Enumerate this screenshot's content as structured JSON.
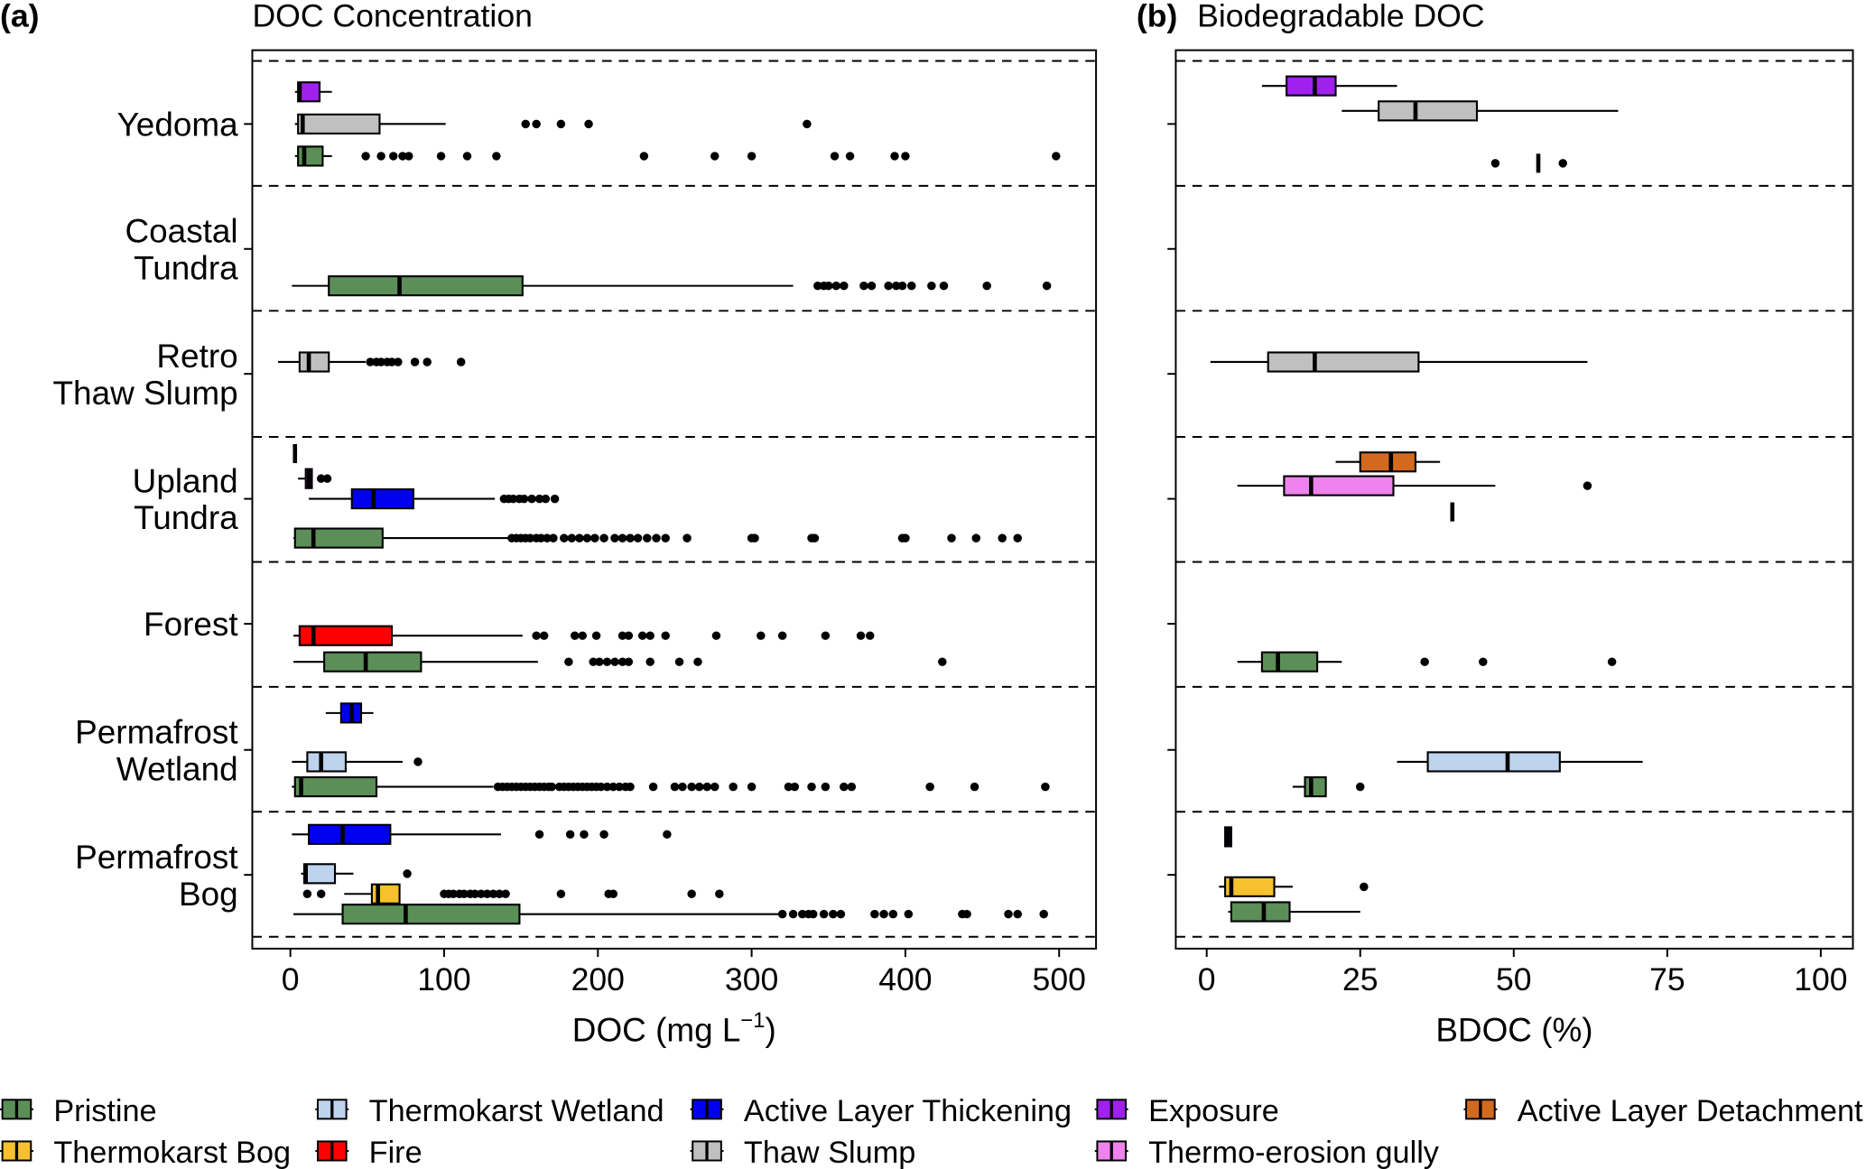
{
  "colors": {
    "Pristine": "#5b8f57",
    "Thermokarst Bog": "#f7c12e",
    "Thermokarst Wetland": "#bdd3ee",
    "Fire": "#ff0000",
    "Active Layer Thickening": "#0000ee",
    "Thaw Slump": "#c0c0c0",
    "Exposure": "#a020f0",
    "Thermo-erosion gully": "#ee82ee",
    "Active Layer Detachment": "#d2691e"
  },
  "legend": {
    "items": [
      "Pristine",
      "Thermokarst Bog",
      "Thermokarst Wetland",
      "Fire",
      "Active Layer Thickening",
      "Thaw Slump",
      "Exposure",
      "Thermo-erosion gully",
      "Active Layer Detachment"
    ]
  },
  "chart_data": [
    {
      "type": "boxplot",
      "panel_label": "(a)",
      "title": "DOC Concentration",
      "xlabel": {
        "main": "DOC (mg L",
        "sup": "−1",
        "end": ")"
      },
      "xlim": [
        -25,
        525
      ],
      "xticks": [
        0,
        100,
        200,
        300,
        400,
        500
      ],
      "groups": [
        {
          "label": [
            "Yedoma"
          ],
          "boxes": [
            {
              "category": "Exposure",
              "min": 3,
              "q1": 5,
              "median": 6,
              "q3": 19,
              "max": 27,
              "outliers": []
            },
            {
              "category": "Thaw Slump",
              "min": 3,
              "q1": 5,
              "median": 8,
              "q3": 58,
              "max": 101,
              "outliers": [
                153,
                160,
                176,
                194,
                336
              ]
            },
            {
              "category": "Pristine",
              "min": 3,
              "q1": 5,
              "median": 9,
              "q3": 21,
              "max": 27,
              "outliers": [
                49,
                59,
                67,
                73,
                77,
                98,
                115,
                134,
                230,
                276,
                300,
                354,
                364,
                393,
                400,
                498
              ]
            }
          ]
        },
        {
          "label": [
            "Coastal",
            "Tundra"
          ],
          "boxes": [
            {
              "category": "Pristine",
              "min": 1,
              "q1": 25,
              "median": 71,
              "q3": 151,
              "max": 327,
              "outliers": [
                343,
                347,
                350,
                355,
                360,
                373,
                378,
                389,
                394,
                398,
                404,
                417,
                425,
                453,
                492
              ]
            }
          ]
        },
        {
          "label": [
            "Retro",
            "Thaw Slump"
          ],
          "boxes": [
            {
              "category": "Thaw Slump",
              "min": -8,
              "q1": 6,
              "median": 12,
              "q3": 25,
              "max": 49,
              "outliers": [
                52,
                56,
                59,
                63,
                66,
                70,
                81,
                89,
                111
              ]
            }
          ]
        },
        {
          "label": [
            "Upland",
            "Tundra"
          ],
          "boxes": [
            {
              "category": "Active Layer Detachment",
              "min": 3,
              "q1": 3,
              "median": 3,
              "q3": 3,
              "max": 3,
              "outliers": []
            },
            {
              "category": "Thermo-erosion gully",
              "min": 5,
              "q1": 10,
              "median": 12,
              "q3": 14,
              "max": 14,
              "outliers": [
                20,
                24
              ]
            },
            {
              "category": "Active Layer Thickening",
              "min": 12,
              "q1": 40,
              "median": 54,
              "q3": 80,
              "max": 133,
              "outliers": [
                139,
                142,
                145,
                149,
                152,
                157,
                162,
                166,
                172
              ]
            },
            {
              "category": "Pristine",
              "min": 2,
              "q1": 3,
              "median": 15,
              "q3": 60,
              "max": 142,
              "outliers": [
                144,
                147,
                150,
                153,
                156,
                160,
                163,
                167,
                171,
                178,
                183,
                188,
                193,
                198,
                204,
                211,
                216,
                221,
                226,
                232,
                238,
                244,
                258,
                300,
                302,
                339,
                341,
                398,
                400,
                430,
                446,
                463,
                473
              ]
            }
          ]
        },
        {
          "label": [
            "Forest"
          ],
          "boxes": [
            {
              "category": "Fire",
              "min": 2,
              "q1": 6,
              "median": 15,
              "q3": 66,
              "max": 151,
              "outliers": [
                160,
                165,
                185,
                190,
                199,
                216,
                220,
                229,
                234,
                244,
                277,
                306,
                320,
                348,
                371,
                377
              ]
            },
            {
              "category": "Pristine",
              "min": 2,
              "q1": 22,
              "median": 49,
              "q3": 85,
              "max": 161,
              "outliers": [
                181,
                197,
                201,
                206,
                211,
                216,
                220,
                234,
                253,
                265,
                424
              ]
            }
          ]
        },
        {
          "label": [
            "Permafrost",
            "Wetland"
          ],
          "boxes": [
            {
              "category": "Active Layer Thickening",
              "min": 23,
              "q1": 33,
              "median": 40,
              "q3": 46,
              "max": 54,
              "outliers": []
            },
            {
              "category": "Thermokarst Wetland",
              "min": 1,
              "q1": 11,
              "median": 20,
              "q3": 36,
              "max": 73,
              "outliers": [
                83
              ]
            },
            {
              "category": "Pristine",
              "min": 1,
              "q1": 3,
              "median": 7,
              "q3": 56,
              "max": 132,
              "outliers": [
                135,
                138,
                141,
                144,
                147,
                150,
                153,
                156,
                159,
                162,
                165,
                168,
                170,
                175,
                178,
                181,
                184,
                187,
                190,
                193,
                196,
                199,
                202,
                206,
                210,
                214,
                218,
                221,
                236,
                250,
                255,
                261,
                266,
                271,
                276,
                288,
                300,
                324,
                328,
                339,
                348,
                360,
                365,
                416,
                445,
                491
              ]
            }
          ]
        },
        {
          "label": [
            "Permafrost",
            "Bog"
          ],
          "boxes": [
            {
              "category": "Active Layer Thickening",
              "min": 1,
              "q1": 12,
              "median": 34,
              "q3": 65,
              "max": 137,
              "outliers": [
                162,
                182,
                191,
                204,
                245
              ]
            },
            {
              "category": "Thermokarst Wetland",
              "min": 7,
              "q1": 9,
              "median": 10,
              "q3": 29,
              "max": 41,
              "outliers": [
                76
              ]
            },
            {
              "category": "Thermokarst Bog",
              "min": 35,
              "q1": 53,
              "median": 57,
              "q3": 71,
              "max": 71,
              "outliers": [
                11,
                20,
                100,
                103,
                106,
                110,
                113,
                117,
                120,
                124,
                128,
                132,
                136,
                140,
                176,
                207,
                210,
                261,
                279
              ]
            },
            {
              "category": "Pristine",
              "min": 2,
              "q1": 34,
              "median": 75,
              "q3": 149,
              "max": 318,
              "outliers": [
                320,
                327,
                333,
                337,
                340,
                347,
                353,
                358,
                380,
                386,
                392,
                402,
                437,
                440,
                467,
                473,
                490
              ]
            }
          ]
        }
      ]
    },
    {
      "type": "boxplot",
      "panel_label": "(b)",
      "title": "Biodegradable DOC",
      "xlabel": {
        "main": "BDOC (%)",
        "sup": "",
        "end": ""
      },
      "xlim": [
        -5,
        105
      ],
      "xticks": [
        0,
        25,
        50,
        75,
        100
      ],
      "groups": [
        {
          "boxes": [
            {
              "category": "Exposure",
              "min": 9,
              "q1": 13,
              "median": 17.6,
              "q3": 21,
              "max": 31,
              "outliers": []
            },
            {
              "category": "Thaw Slump",
              "min": 22,
              "q1": 28,
              "median": 34,
              "q3": 44,
              "max": 67,
              "outliers": []
            },
            {
              "category": "Pristine",
              "min": 54,
              "q1": 54,
              "median": 54,
              "q3": 54,
              "max": 54,
              "outliers": [
                47,
                58
              ]
            }
          ]
        },
        {
          "boxes": []
        },
        {
          "boxes": [
            {
              "category": "Thaw Slump",
              "min": 0.6,
              "q1": 10,
              "median": 17.6,
              "q3": 34.5,
              "max": 62,
              "outliers": []
            }
          ]
        },
        {
          "boxes": [
            {
              "category": "Active Layer Detachment",
              "min": 21,
              "q1": 25,
              "median": 30,
              "q3": 34,
              "max": 38,
              "outliers": []
            },
            {
              "category": "Thermo-erosion gully",
              "min": 5,
              "q1": 12.6,
              "median": 17,
              "q3": 30.4,
              "max": 47,
              "outliers": [
                62
              ]
            },
            {
              "category": "Active Layer Thickening",
              "min": 40,
              "q1": 40,
              "median": 40,
              "q3": 40,
              "max": 40,
              "outliers": []
            }
          ]
        },
        {
          "boxes": [
            {
              "category": "Pristine",
              "min": 5,
              "q1": 9,
              "median": 11.6,
              "q3": 18,
              "max": 22,
              "outliers": [
                35.5,
                45,
                66
              ]
            }
          ]
        },
        {
          "boxes": [
            {
              "category": "Thermokarst Wetland",
              "min": 31,
              "q1": 36,
              "median": 49,
              "q3": 57.5,
              "max": 71,
              "outliers": []
            },
            {
              "category": "Pristine",
              "min": 14,
              "q1": 16,
              "median": 17,
              "q3": 19.4,
              "max": 19.4,
              "outliers": [
                25
              ]
            }
          ]
        },
        {
          "boxes": [
            {
              "category": "Active Layer Thickening",
              "min": 3,
              "q1": 3,
              "median": 3.5,
              "q3": 4,
              "max": 4,
              "outliers": []
            },
            {
              "category": "Thermokarst Bog",
              "min": 2,
              "q1": 3,
              "median": 4,
              "q3": 11,
              "max": 14,
              "outliers": [
                25.6
              ]
            },
            {
              "category": "Pristine",
              "min": 3.5,
              "q1": 4,
              "median": 9.3,
              "q3": 13.5,
              "max": 25,
              "outliers": []
            }
          ]
        }
      ]
    }
  ]
}
